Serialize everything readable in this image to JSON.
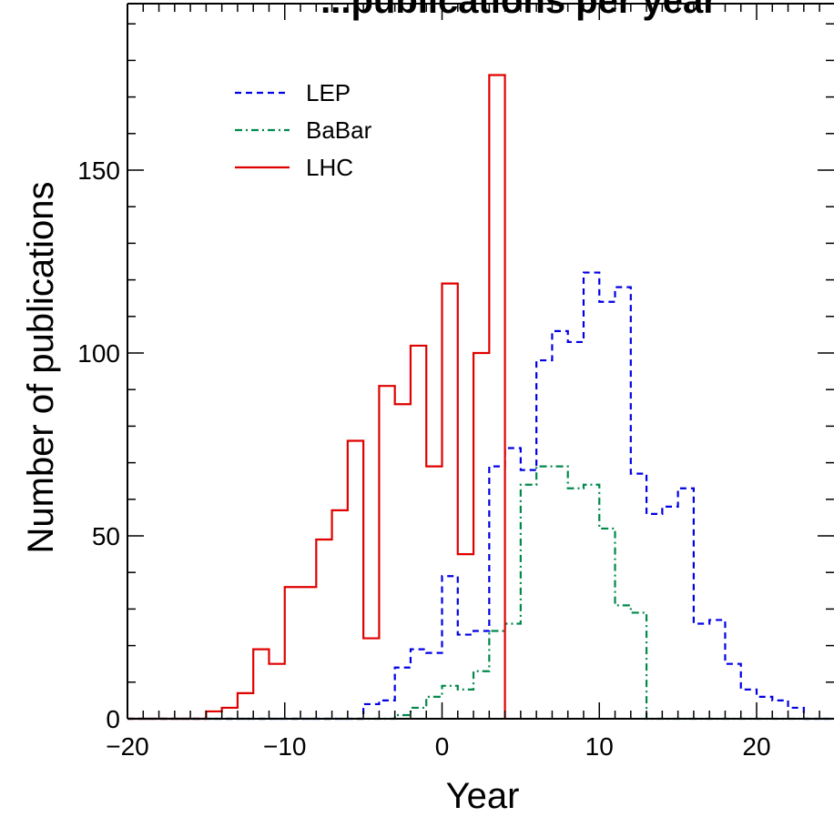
{
  "chart_data": {
    "type": "histogram",
    "title": "...publications per year",
    "xlabel": "Year",
    "ylabel": "Number of publications",
    "xlim": [
      -20,
      25
    ],
    "ylim": [
      0,
      190
    ],
    "x_ticks": [
      "−20",
      "−10",
      "0",
      "10",
      "20"
    ],
    "y_ticks": [
      "0",
      "50",
      "100",
      "150"
    ],
    "grid": false,
    "legend_position": "top-left",
    "series": [
      {
        "name": "LEP",
        "color": "#0000e6",
        "line_style": "dashed",
        "bin_edges": [
          -20,
          -19,
          -18,
          -17,
          -16,
          -15,
          -14,
          -13,
          -12,
          -11,
          -10,
          -9,
          -8,
          -7,
          -6,
          -5,
          -4,
          -3,
          -2,
          -1,
          0,
          1,
          2,
          3,
          4,
          5,
          6,
          7,
          8,
          9,
          10,
          11,
          12,
          13,
          14,
          15,
          16,
          17,
          18,
          19,
          20,
          21,
          22,
          23,
          24,
          25
        ],
        "values": [
          0,
          0,
          0,
          0,
          0,
          0,
          0,
          0,
          0,
          0,
          0,
          0,
          0,
          0,
          0,
          4,
          5,
          14,
          19,
          18,
          39,
          23,
          24,
          69,
          74,
          68,
          98,
          106,
          103,
          122,
          114,
          118,
          67,
          56,
          58,
          63,
          26,
          27,
          15,
          8,
          6,
          5,
          3,
          0,
          0
        ]
      },
      {
        "name": "BaBar",
        "color": "#00894a",
        "line_style": "dashdot",
        "bin_edges": [
          -20,
          -19,
          -18,
          -17,
          -16,
          -15,
          -14,
          -13,
          -12,
          -11,
          -10,
          -9,
          -8,
          -7,
          -6,
          -5,
          -4,
          -3,
          -2,
          -1,
          0,
          1,
          2,
          3,
          4,
          5,
          6,
          7,
          8,
          9,
          10,
          11,
          12,
          13,
          14,
          15,
          16,
          17,
          18,
          19,
          20,
          21,
          22,
          23,
          24,
          25
        ],
        "values": [
          0,
          0,
          0,
          0,
          0,
          0,
          0,
          0,
          0,
          0,
          0,
          0,
          0,
          0,
          0,
          0,
          0,
          1,
          3,
          6,
          9,
          8,
          13,
          24,
          26,
          64,
          69,
          69,
          63,
          64,
          52,
          31,
          29,
          0,
          0,
          0,
          0,
          0,
          0,
          0,
          0,
          0,
          0,
          0,
          0
        ]
      },
      {
        "name": "LHC",
        "color": "#e00000",
        "line_style": "solid",
        "bin_edges": [
          -20,
          -19,
          -18,
          -17,
          -16,
          -15,
          -14,
          -13,
          -12,
          -11,
          -10,
          -9,
          -8,
          -7,
          -6,
          -5,
          -4,
          -3,
          -2,
          -1,
          0,
          1,
          2,
          3,
          4
        ],
        "values": [
          0,
          0,
          0,
          0,
          0,
          2,
          3,
          7,
          19,
          15,
          36,
          36,
          49,
          57,
          76,
          22,
          91,
          86,
          102,
          69,
          119,
          45,
          100,
          176
        ]
      }
    ]
  }
}
